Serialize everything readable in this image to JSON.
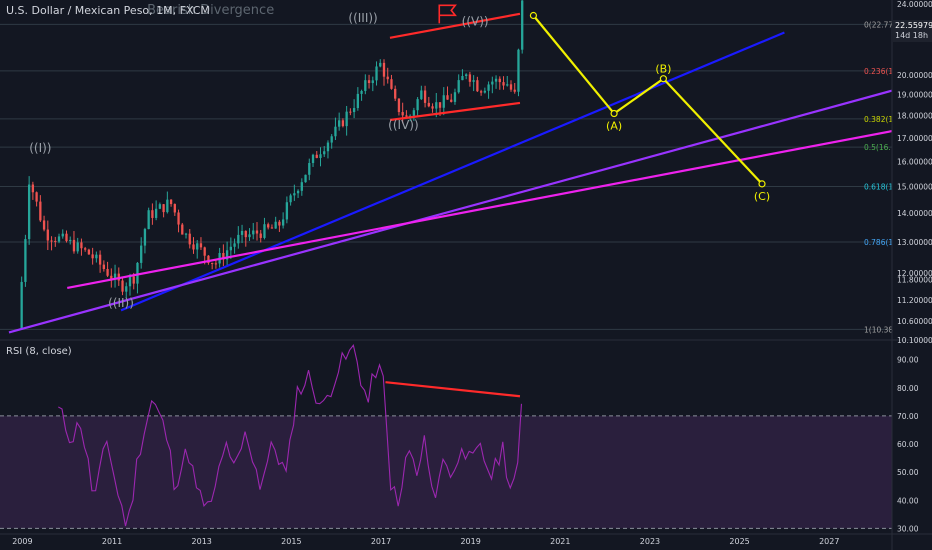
{
  "header": {
    "title": "U.S. Dollar / Mexican Peso, 1M, FXCM"
  },
  "rsi_header": {
    "title": "RSI (8, close)"
  },
  "price_badge": {
    "price": "22.55979",
    "countdown": "14d 18h"
  },
  "colors": {
    "background": "#131722",
    "up": "#26a69a",
    "down": "#ef5350",
    "channel": "#ff2a2a",
    "wave": "#f0f000",
    "trend_blue": "#1a1aff",
    "trend_purple": "#9933ff",
    "trend_magenta": "#ee22ee",
    "rsi": "#9c27b0",
    "rsi_fill": "#2a1f3d",
    "fib_grid": "#2f3a44"
  },
  "chart_data": [
    {
      "type": "candlestick",
      "series": [
        {
          "name": ""
        }
      ],
      "x_axis": {
        "ticks": [
          "2009",
          "2011",
          "2013",
          "2015",
          "2017",
          "2019",
          "2021",
          "2023",
          "2025",
          "2027"
        ],
        "range": [
          2008.5,
          2028.4
        ]
      },
      "y_axis": {
        "scale": "log",
        "range": [
          10.1,
          24.0
        ],
        "ticks": [
          "24.00000",
          "20.00000",
          "19.00000",
          "18.00000",
          "17.00000",
          "16.00000",
          "15.00000",
          "14.00000",
          "13.00000",
          "12.00000",
          "11.80000",
          "11.20000",
          "10.60000",
          "10.10000"
        ]
      },
      "monthly_close_keypoints": [
        [
          2008.9,
          10.4
        ],
        [
          2009.05,
          12.8
        ],
        [
          2009.15,
          15.3
        ],
        [
          2009.5,
          13.3
        ],
        [
          2010.0,
          13.0
        ],
        [
          2010.5,
          12.6
        ],
        [
          2011.2,
          11.6
        ],
        [
          2011.5,
          11.9
        ],
        [
          2011.8,
          13.9
        ],
        [
          2012.3,
          14.4
        ],
        [
          2012.6,
          13.3
        ],
        [
          2013.0,
          12.7
        ],
        [
          2013.3,
          12.3
        ],
        [
          2013.8,
          13.1
        ],
        [
          2014.2,
          13.3
        ],
        [
          2014.7,
          13.5
        ],
        [
          2015.1,
          14.9
        ],
        [
          2015.6,
          16.4
        ],
        [
          2016.0,
          17.3
        ],
        [
          2016.5,
          18.9
        ],
        [
          2017.0,
          20.6
        ],
        [
          2017.3,
          18.6
        ],
        [
          2017.6,
          17.8
        ],
        [
          2017.9,
          19.1
        ],
        [
          2018.2,
          18.5
        ],
        [
          2018.6,
          18.8
        ],
        [
          2018.9,
          20.2
        ],
        [
          2019.2,
          19.3
        ],
        [
          2019.5,
          19.7
        ],
        [
          2019.8,
          19.6
        ],
        [
          2020.0,
          18.9
        ],
        [
          2020.15,
          24.0
        ]
      ],
      "fib_levels": [
        {
          "label": "0(22.77",
          "ratio": 0,
          "price": 22.77,
          "color": "#a0a0a0"
        },
        {
          "label": "0.236(1",
          "ratio": 0.236,
          "price": 20.2,
          "color": "#ef5350"
        },
        {
          "label": "0.382(1",
          "ratio": 0.382,
          "price": 17.85,
          "color": "#c8d400"
        },
        {
          "label": "0.5(16.",
          "ratio": 0.5,
          "price": 16.6,
          "color": "#4caf50"
        },
        {
          "label": "0.618(1",
          "ratio": 0.618,
          "price": 15.0,
          "color": "#26c6da"
        },
        {
          "label": "0.786(1",
          "ratio": 0.786,
          "price": 13.0,
          "color": "#42a5f5"
        },
        {
          "label": "1(10.38",
          "ratio": 1,
          "price": 10.38,
          "color": "#a0a0a0"
        }
      ],
      "annotations": [
        {
          "text": "Bearish Divergence",
          "x": 2013.2,
          "y": 23.4
        },
        {
          "text": "((I))",
          "x": 2009.4,
          "y": 16.4
        },
        {
          "text": "((II))",
          "x": 2011.2,
          "y": 11.0
        },
        {
          "text": "((III))",
          "x": 2016.6,
          "y": 22.9
        },
        {
          "text": "((IV))",
          "x": 2017.5,
          "y": 17.4
        },
        {
          "text": "((V))",
          "x": 2019.1,
          "y": 22.7
        }
      ],
      "elliott_projection": {
        "points": [
          {
            "label": "",
            "x": 2020.4,
            "y": 23.3
          },
          {
            "label": "(A)",
            "x": 2022.2,
            "y": 18.1
          },
          {
            "label": "(B)",
            "x": 2023.3,
            "y": 19.8
          },
          {
            "label": "(C)",
            "x": 2025.5,
            "y": 15.1
          }
        ]
      },
      "channel": {
        "upper": [
          [
            2017.2,
            22.0
          ],
          [
            2020.1,
            23.4
          ]
        ],
        "lower": [
          [
            2017.2,
            17.8
          ],
          [
            2020.1,
            18.6
          ]
        ]
      },
      "trendlines": [
        {
          "color": "blue",
          "points": [
            [
              2011.2,
              10.9
            ],
            [
              2026.0,
              22.3
            ]
          ]
        },
        {
          "color": "purple",
          "points": [
            [
              2008.7,
              10.3
            ],
            [
              2028.4,
              19.2
            ]
          ]
        },
        {
          "color": "magenta",
          "points": [
            [
              2010.0,
              11.55
            ],
            [
              2028.4,
              17.3
            ]
          ]
        }
      ]
    },
    {
      "type": "line",
      "series": [
        {
          "name": ""
        }
      ],
      "y_axis": {
        "range": [
          28,
          97
        ],
        "ticks": [
          "90.00",
          "80.00",
          "70.00",
          "60.00",
          "50.00",
          "40.00",
          "30.00"
        ],
        "bands": [
          30,
          70
        ]
      },
      "keypoints": [
        [
          2009.8,
          72
        ],
        [
          2010.1,
          62
        ],
        [
          2010.3,
          68
        ],
        [
          2010.6,
          40
        ],
        [
          2010.9,
          62
        ],
        [
          2011.1,
          44
        ],
        [
          2011.35,
          30
        ],
        [
          2011.6,
          58
        ],
        [
          2011.9,
          76
        ],
        [
          2012.2,
          64
        ],
        [
          2012.4,
          46
        ],
        [
          2012.7,
          58
        ],
        [
          2012.9,
          42
        ],
        [
          2013.2,
          36
        ],
        [
          2013.5,
          60
        ],
        [
          2013.7,
          50
        ],
        [
          2014.0,
          64
        ],
        [
          2014.3,
          46
        ],
        [
          2014.6,
          60
        ],
        [
          2014.9,
          48
        ],
        [
          2015.1,
          78
        ],
        [
          2015.4,
          84
        ],
        [
          2015.7,
          72
        ],
        [
          2016.0,
          86
        ],
        [
          2016.4,
          94
        ],
        [
          2016.7,
          74
        ],
        [
          2016.9,
          88
        ],
        [
          2017.05,
          82
        ],
        [
          2017.2,
          48
        ],
        [
          2017.4,
          36
        ],
        [
          2017.6,
          60
        ],
        [
          2017.8,
          48
        ],
        [
          2018.0,
          62
        ],
        [
          2018.2,
          38
        ],
        [
          2018.4,
          58
        ],
        [
          2018.6,
          46
        ],
        [
          2018.8,
          62
        ],
        [
          2019.0,
          52
        ],
        [
          2019.2,
          58
        ],
        [
          2019.5,
          48
        ],
        [
          2019.7,
          60
        ],
        [
          2019.9,
          44
        ],
        [
          2020.05,
          50
        ],
        [
          2020.15,
          77
        ]
      ],
      "divergence_line": [
        [
          2017.1,
          82
        ],
        [
          2020.1,
          77
        ]
      ]
    }
  ]
}
